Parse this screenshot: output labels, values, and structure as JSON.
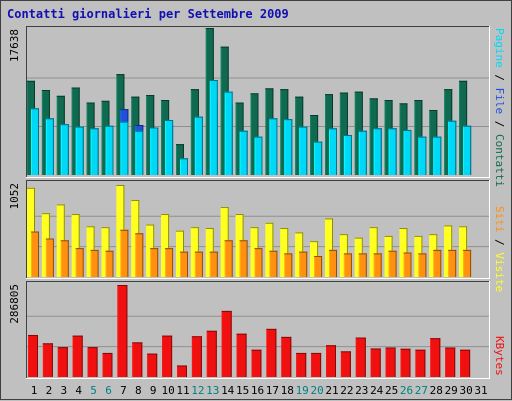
{
  "title": "Contatti giornalieri per Settembre 2009",
  "colors": {
    "background": "#c0c0c0",
    "plot_bg": "#c0c0c0",
    "grid": "#909090",
    "weekend_label": "#008080",
    "weekday_label": "#000000",
    "pagine": "#00d8f8",
    "file": "#2050e0",
    "contatti": "#106a50",
    "visite": "#ffff20",
    "siti": "#ff9010",
    "kbytes": "#f01010"
  },
  "chart_data": [
    {
      "type": "bar",
      "panel": "top",
      "ymax_label": "17638",
      "ylim": [
        0,
        17638
      ],
      "categories": [
        "1",
        "2",
        "3",
        "4",
        "5",
        "6",
        "7",
        "8",
        "9",
        "10",
        "11",
        "12",
        "13",
        "14",
        "15",
        "16",
        "17",
        "18",
        "19",
        "20",
        "21",
        "22",
        "23",
        "24",
        "25",
        "26",
        "27",
        "28",
        "29",
        "30",
        "31"
      ],
      "legend": [
        {
          "text": "Pagine",
          "color": "#00d8f8"
        },
        {
          "text": " / ",
          "color": "#000000"
        },
        {
          "text": "File",
          "color": "#2050e0"
        },
        {
          "text": " / ",
          "color": "#000000"
        },
        {
          "text": "Contatti",
          "color": "#106a50"
        }
      ],
      "series": [
        {
          "name": "Contatti",
          "values": [
            11300,
            10200,
            9500,
            10500,
            8700,
            8900,
            12100,
            9400,
            9600,
            9000,
            3700,
            10300,
            17638,
            15400,
            8700,
            9800,
            10400,
            10300,
            9400,
            7200,
            9700,
            9900,
            10000,
            9200,
            9000,
            8600,
            9000,
            7800,
            10300,
            11300,
            0
          ]
        },
        {
          "name": "File",
          "values": [
            8000,
            6800,
            6100,
            5800,
            5600,
            5900,
            7900,
            6000,
            5700,
            6000,
            2000,
            7000,
            8800,
            8400,
            5300,
            4600,
            6800,
            6700,
            5800,
            4000,
            5600,
            4800,
            5300,
            5600,
            5600,
            5400,
            4600,
            4600,
            6500,
            5900,
            0
          ]
        },
        {
          "name": "Pagine",
          "values": [
            8000,
            6800,
            6100,
            5800,
            5600,
            5900,
            6400,
            5300,
            5700,
            6600,
            2000,
            7000,
            11400,
            10000,
            5300,
            4600,
            6800,
            6700,
            5800,
            4000,
            5600,
            4800,
            5300,
            5600,
            5600,
            5400,
            4600,
            4600,
            6500,
            5900,
            0
          ]
        }
      ]
    },
    {
      "type": "bar",
      "panel": "middle",
      "ymax_label": "1052",
      "ylim": [
        0,
        1052
      ],
      "categories": [
        "1",
        "2",
        "3",
        "4",
        "5",
        "6",
        "7",
        "8",
        "9",
        "10",
        "11",
        "12",
        "13",
        "14",
        "15",
        "16",
        "17",
        "18",
        "19",
        "20",
        "21",
        "22",
        "23",
        "24",
        "25",
        "26",
        "27",
        "28",
        "29",
        "30",
        "31"
      ],
      "legend": [
        {
          "text": "Siti",
          "color": "#ff9010"
        },
        {
          "text": " / ",
          "color": "#000000"
        },
        {
          "text": "Visite",
          "color": "#ffff20"
        }
      ],
      "series": [
        {
          "name": "Visite",
          "values": [
            1020,
            730,
            830,
            720,
            580,
            570,
            1052,
            880,
            600,
            720,
            530,
            570,
            560,
            800,
            720,
            570,
            620,
            560,
            510,
            410,
            670,
            490,
            450,
            570,
            470,
            560,
            470,
            490,
            590,
            580,
            0
          ]
        },
        {
          "name": "Siti",
          "values": [
            520,
            440,
            420,
            330,
            310,
            300,
            540,
            500,
            330,
            330,
            290,
            290,
            290,
            420,
            420,
            330,
            300,
            270,
            290,
            240,
            310,
            270,
            270,
            270,
            300,
            280,
            270,
            310,
            310,
            310,
            0
          ]
        }
      ]
    },
    {
      "type": "bar",
      "panel": "bottom",
      "ymax_label": "286805",
      "ylim": [
        0,
        286805
      ],
      "categories": [
        "1",
        "2",
        "3",
        "4",
        "5",
        "6",
        "7",
        "8",
        "9",
        "10",
        "11",
        "12",
        "13",
        "14",
        "15",
        "16",
        "17",
        "18",
        "19",
        "20",
        "21",
        "22",
        "23",
        "24",
        "25",
        "26",
        "27",
        "28",
        "29",
        "30",
        "31"
      ],
      "legend": [
        {
          "text": "KBytes",
          "color": "#f01010"
        }
      ],
      "series": [
        {
          "name": "KBytes",
          "values": [
            131000,
            105000,
            93000,
            129000,
            93000,
            75000,
            286805,
            108000,
            73000,
            129000,
            36000,
            127000,
            144000,
            206000,
            135000,
            85000,
            150000,
            125000,
            75000,
            75000,
            99000,
            80000,
            123000,
            89000,
            92000,
            88000,
            85000,
            121000,
            92000,
            85000,
            0
          ]
        }
      ]
    }
  ],
  "x_labels": [
    "1",
    "2",
    "3",
    "4",
    "5",
    "6",
    "7",
    "8",
    "9",
    "10",
    "11",
    "12",
    "13",
    "14",
    "15",
    "16",
    "17",
    "18",
    "19",
    "20",
    "21",
    "22",
    "23",
    "24",
    "25",
    "26",
    "27",
    "28",
    "29",
    "30",
    "31"
  ],
  "weekend_days": [
    "5",
    "6",
    "12",
    "13",
    "19",
    "20",
    "26",
    "27"
  ]
}
